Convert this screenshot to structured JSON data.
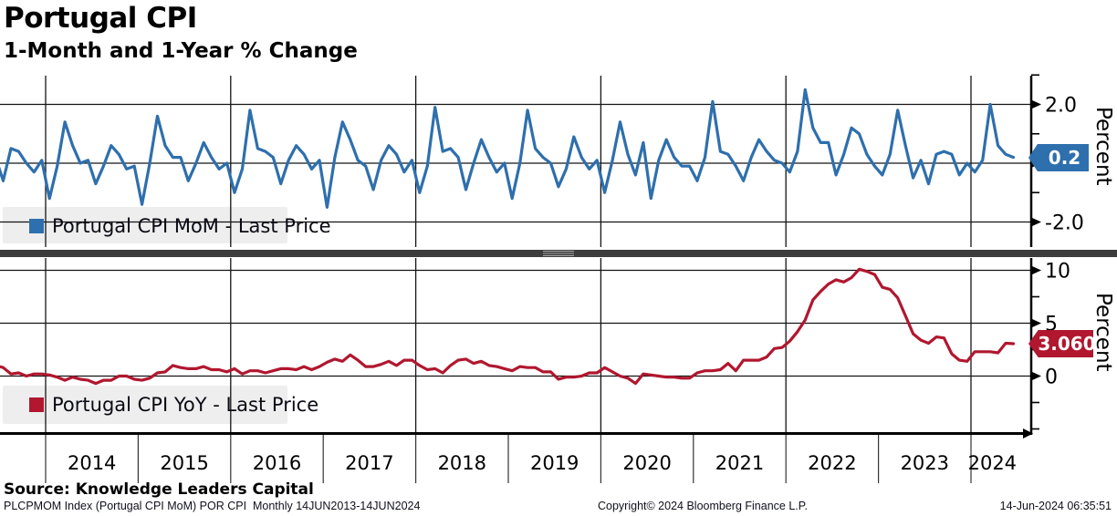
{
  "header": {
    "title": "Portugal CPI",
    "subtitle": "1-Month and 1-Year % Change"
  },
  "xaxis": {
    "years": [
      "2014",
      "2015",
      "2016",
      "2017",
      "2018",
      "2019",
      "2020",
      "2021",
      "2022",
      "2023",
      "2024"
    ]
  },
  "chart_data": [
    {
      "type": "line",
      "name": "Portugal CPI MoM",
      "legend": "Portugal CPI MoM - Last Price",
      "ylabel": "Percent",
      "color": "#2e6fad",
      "last_price": "0.2",
      "x_start": "2013-06",
      "x_end": "2024-06",
      "x_freq": "monthly",
      "ylim": [
        -2.85,
        3.0
      ],
      "grid": "on",
      "legend_position": "bottom-left",
      "yticks": [
        {
          "v": 2.0,
          "label": "2.0"
        },
        {
          "v": 0.0,
          "label": "0.0"
        },
        {
          "v": -2.0,
          "label": "-2.0"
        }
      ],
      "yticks_minor": [
        3.0,
        1.0,
        -1.0
      ],
      "values": [
        0.2,
        -0.6,
        0.5,
        0.4,
        0.0,
        -0.3,
        0.1,
        -1.2,
        -0.1,
        1.4,
        0.6,
        0.0,
        0.1,
        -0.7,
        -0.1,
        0.6,
        0.3,
        -0.2,
        -0.1,
        -1.4,
        0.0,
        1.6,
        0.6,
        0.2,
        0.2,
        -0.6,
        0.0,
        0.7,
        0.2,
        -0.2,
        0.0,
        -1.0,
        -0.2,
        1.8,
        0.5,
        0.4,
        0.2,
        -0.7,
        0.1,
        0.6,
        0.3,
        -0.2,
        0.1,
        -1.5,
        0.2,
        1.4,
        0.8,
        0.1,
        -0.1,
        -0.9,
        0.1,
        0.6,
        0.3,
        -0.3,
        0.1,
        -1.0,
        -0.1,
        1.9,
        0.4,
        0.5,
        0.2,
        -0.9,
        0.0,
        0.8,
        0.2,
        -0.3,
        0.0,
        -1.2,
        0.0,
        1.8,
        0.5,
        0.2,
        0.0,
        -0.8,
        -0.2,
        0.9,
        0.2,
        -0.2,
        0.1,
        -1.0,
        0.1,
        1.4,
        0.3,
        -0.4,
        0.7,
        -1.2,
        0.1,
        0.8,
        0.2,
        -0.1,
        -0.1,
        -0.6,
        0.2,
        2.1,
        0.4,
        0.3,
        -0.1,
        -0.6,
        0.2,
        0.8,
        0.4,
        0.1,
        0.0,
        -0.3,
        0.4,
        2.5,
        1.2,
        0.7,
        0.7,
        -0.4,
        0.3,
        1.2,
        1.0,
        0.3,
        -0.1,
        -0.4,
        0.3,
        1.8,
        0.6,
        -0.5,
        0.1,
        -0.7,
        0.3,
        0.4,
        0.3,
        -0.4,
        0.0,
        -0.3,
        0.1,
        2.0,
        0.6,
        0.3,
        0.2
      ]
    },
    {
      "type": "line",
      "name": "Portugal CPI YoY",
      "legend": "Portugal CPI YoY - Last Price",
      "ylabel": "Percent",
      "color": "#b1172f",
      "last_price": "3.060",
      "x_start": "2013-06",
      "x_end": "2024-06",
      "x_freq": "monthly",
      "ylim": [
        -5.3,
        11.2
      ],
      "grid": "on",
      "legend_position": "bottom-left",
      "yticks": [
        {
          "v": 10,
          "label": "10"
        },
        {
          "v": 5,
          "label": "5"
        },
        {
          "v": 0,
          "label": "0"
        }
      ],
      "yticks_minor": [
        7.5,
        2.5,
        -2.5,
        -5.0
      ],
      "values": [
        1.0,
        0.8,
        0.2,
        0.3,
        0.0,
        0.2,
        0.2,
        0.1,
        -0.1,
        -0.4,
        -0.1,
        -0.3,
        -0.4,
        -0.7,
        -0.4,
        -0.4,
        0.0,
        0.0,
        -0.3,
        -0.4,
        -0.2,
        0.3,
        0.4,
        1.0,
        0.8,
        0.7,
        0.7,
        0.9,
        0.6,
        0.6,
        0.4,
        0.7,
        0.2,
        0.5,
        0.5,
        0.3,
        0.5,
        0.7,
        0.7,
        0.6,
        0.9,
        0.6,
        0.9,
        1.3,
        1.6,
        1.4,
        2.0,
        1.5,
        0.9,
        0.9,
        1.1,
        1.4,
        1.0,
        1.5,
        1.5,
        1.0,
        0.6,
        0.7,
        0.3,
        1.0,
        1.5,
        1.6,
        1.2,
        1.4,
        1.0,
        0.9,
        0.7,
        0.5,
        0.9,
        0.8,
        0.8,
        0.4,
        0.4,
        -0.3,
        -0.1,
        -0.1,
        0.0,
        0.3,
        0.3,
        0.8,
        0.4,
        0.0,
        -0.2,
        -0.7,
        0.2,
        0.1,
        0.0,
        -0.1,
        -0.1,
        -0.2,
        -0.2,
        0.3,
        0.5,
        0.5,
        0.6,
        1.2,
        0.5,
        1.5,
        1.5,
        1.5,
        1.8,
        2.6,
        2.7,
        3.3,
        4.2,
        5.3,
        7.2,
        8.0,
        8.7,
        9.1,
        8.9,
        9.3,
        10.1,
        9.9,
        9.6,
        8.4,
        8.2,
        7.4,
        5.7,
        4.0,
        3.4,
        3.1,
        3.7,
        3.6,
        2.1,
        1.5,
        1.4,
        2.3,
        2.3,
        2.3,
        2.2,
        3.1,
        3.06
      ]
    }
  ],
  "footer": {
    "source": "Source: Knowledge Leaders Capital",
    "meta_left": "PLCPMOM Index (Portugal CPI MoM) POR CPI  Monthly 14JUN2013-14JUN2024",
    "meta_center": "Copyright© 2024 Bloomberg Finance L.P.",
    "meta_right": "14-Jun-2024 06:35:51"
  },
  "colors": {
    "mom_line": "#2e6fad",
    "yoy_line": "#b1172f",
    "grid": "#141414",
    "legend_bg": "#eeeeee",
    "splitter": "#3d3d3d"
  }
}
